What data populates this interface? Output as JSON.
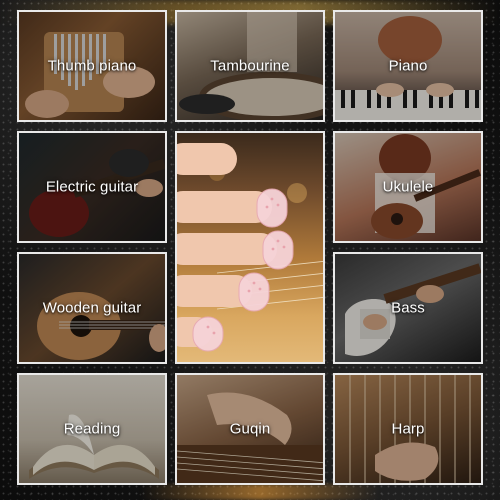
{
  "tiles": [
    {
      "label": "Thumb piano"
    },
    {
      "label": "Tambourine"
    },
    {
      "label": "Piano"
    },
    {
      "label": "Electric guitar"
    },
    {
      "label": "Ukulele"
    },
    {
      "label": "Wooden guitar"
    },
    {
      "label": "Bass"
    },
    {
      "label": "Reading"
    },
    {
      "label": "Guqin"
    },
    {
      "label": "Harp"
    }
  ],
  "colors": {
    "background": "#111111",
    "tile_border": "#e9e9e9",
    "label_text": "#ffffff",
    "fingertip_guard": "#f3c9cf"
  }
}
